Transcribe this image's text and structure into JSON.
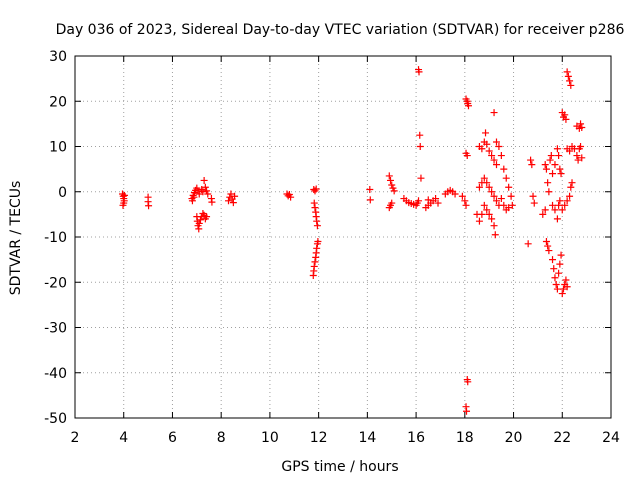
{
  "chart_data": {
    "type": "scatter",
    "title": "Day 036 of 2023, Sidereal Day-to-day VTEC variation (SDTVAR) for receiver p286",
    "xlabel": "GPS time / hours",
    "ylabel": "SDTVAR / TECUs",
    "xlim": [
      2,
      24
    ],
    "ylim": [
      -50,
      30
    ],
    "xticks": [
      2,
      4,
      6,
      8,
      10,
      12,
      14,
      16,
      18,
      20,
      22,
      24
    ],
    "yticks": [
      30,
      20,
      10,
      0,
      -10,
      -20,
      -30,
      -40,
      -50
    ],
    "grid": true,
    "marker": "+",
    "color": "#ff0000",
    "series": [
      {
        "name": "SDTVAR",
        "points": [
          [
            3.95,
            -0.5
          ],
          [
            3.98,
            -1.0
          ],
          [
            4.0,
            -1.5
          ],
          [
            4.02,
            -2.0
          ],
          [
            4.0,
            -2.5
          ],
          [
            3.97,
            -3.0
          ],
          [
            4.03,
            -0.8
          ],
          [
            5.0,
            -1.2
          ],
          [
            5.0,
            -2.2
          ],
          [
            5.02,
            -3.1
          ],
          [
            6.8,
            -1.5
          ],
          [
            6.85,
            -0.8
          ],
          [
            6.9,
            -0.2
          ],
          [
            6.95,
            0.3
          ],
          [
            7.0,
            0.8
          ],
          [
            7.05,
            0.2
          ],
          [
            7.1,
            -0.5
          ],
          [
            6.82,
            -2.0
          ],
          [
            6.88,
            -1.2
          ],
          [
            7.0,
            -5.5
          ],
          [
            7.02,
            -6.5
          ],
          [
            7.05,
            -7.5
          ],
          [
            7.08,
            -8.2
          ],
          [
            7.1,
            -7.0
          ],
          [
            7.15,
            -6.2
          ],
          [
            7.2,
            -5.5
          ],
          [
            7.25,
            -4.8
          ],
          [
            7.3,
            -5.2
          ],
          [
            7.35,
            -6.0
          ],
          [
            7.4,
            -5.5
          ],
          [
            7.2,
            0.5
          ],
          [
            7.25,
            0.0
          ],
          [
            7.3,
            2.5
          ],
          [
            7.35,
            1.0
          ],
          [
            7.4,
            0.2
          ],
          [
            7.45,
            -0.5
          ],
          [
            7.6,
            -1.5
          ],
          [
            7.62,
            -2.3
          ],
          [
            8.3,
            -2.0
          ],
          [
            8.35,
            -1.2
          ],
          [
            8.4,
            -0.5
          ],
          [
            8.45,
            -1.6
          ],
          [
            8.5,
            -2.4
          ],
          [
            8.55,
            -1.0
          ],
          [
            10.7,
            -0.5
          ],
          [
            10.75,
            -0.9
          ],
          [
            10.8,
            -0.6
          ],
          [
            10.85,
            -1.2
          ],
          [
            11.8,
            0.5
          ],
          [
            11.85,
            0.2
          ],
          [
            11.9,
            0.6
          ],
          [
            11.82,
            -2.5
          ],
          [
            11.85,
            -3.5
          ],
          [
            11.88,
            -4.5
          ],
          [
            11.9,
            -5.5
          ],
          [
            11.92,
            -6.5
          ],
          [
            11.95,
            -7.5
          ],
          [
            11.78,
            -18.5
          ],
          [
            11.8,
            -17.5
          ],
          [
            11.82,
            -16.5
          ],
          [
            11.85,
            -15.5
          ],
          [
            11.88,
            -14.5
          ],
          [
            11.9,
            -13.5
          ],
          [
            11.92,
            -12.5
          ],
          [
            11.95,
            -11.5
          ],
          [
            11.97,
            -11.0
          ],
          [
            14.1,
            0.5
          ],
          [
            14.12,
            -1.8
          ],
          [
            14.9,
            -3.5
          ],
          [
            14.95,
            -3.0
          ],
          [
            15.0,
            -2.5
          ],
          [
            14.9,
            3.5
          ],
          [
            14.95,
            2.5
          ],
          [
            15.0,
            1.5
          ],
          [
            15.05,
            0.8
          ],
          [
            15.1,
            0.2
          ],
          [
            15.5,
            -1.5
          ],
          [
            15.6,
            -2.0
          ],
          [
            15.7,
            -2.4
          ],
          [
            15.8,
            -2.6
          ],
          [
            15.9,
            -2.8
          ],
          [
            16.0,
            -3.0
          ],
          [
            16.05,
            -2.5
          ],
          [
            16.1,
            -2.0
          ],
          [
            16.1,
            27.0
          ],
          [
            16.12,
            26.5
          ],
          [
            16.15,
            12.5
          ],
          [
            16.17,
            10.0
          ],
          [
            16.2,
            3.0
          ],
          [
            16.4,
            -3.5
          ],
          [
            16.5,
            -3.0
          ],
          [
            16.6,
            -2.5
          ],
          [
            16.7,
            -2.0
          ],
          [
            16.8,
            -1.5
          ],
          [
            16.9,
            -2.5
          ],
          [
            16.5,
            -1.8
          ],
          [
            17.2,
            -0.5
          ],
          [
            17.3,
            0.0
          ],
          [
            17.4,
            0.3
          ],
          [
            17.5,
            0.0
          ],
          [
            17.6,
            -0.5
          ],
          [
            17.9,
            -1.0
          ],
          [
            18.0,
            -2.0
          ],
          [
            18.05,
            -3.0
          ],
          [
            18.05,
            8.5
          ],
          [
            18.1,
            8.0
          ],
          [
            18.05,
            20.5
          ],
          [
            18.1,
            20.0
          ],
          [
            18.12,
            19.5
          ],
          [
            18.15,
            19.0
          ],
          [
            18.1,
            -41.5
          ],
          [
            18.12,
            -42.0
          ],
          [
            18.05,
            -47.5
          ],
          [
            18.07,
            -48.5
          ],
          [
            18.5,
            -5.0
          ],
          [
            18.6,
            -6.5
          ],
          [
            18.7,
            -5.0
          ],
          [
            18.8,
            -3.0
          ],
          [
            18.9,
            -4.0
          ],
          [
            19.0,
            -5.0
          ],
          [
            19.1,
            -6.0
          ],
          [
            19.2,
            -7.5
          ],
          [
            19.25,
            -9.5
          ],
          [
            18.6,
            10.0
          ],
          [
            18.7,
            9.5
          ],
          [
            18.8,
            11.0
          ],
          [
            18.85,
            13.0
          ],
          [
            18.9,
            10.5
          ],
          [
            19.0,
            9.0
          ],
          [
            19.1,
            8.0
          ],
          [
            19.2,
            7.0
          ],
          [
            19.3,
            6.0
          ],
          [
            18.6,
            1.0
          ],
          [
            18.7,
            2.0
          ],
          [
            18.8,
            3.0
          ],
          [
            18.9,
            2.0
          ],
          [
            19.0,
            1.0
          ],
          [
            19.1,
            0.0
          ],
          [
            19.2,
            -1.0
          ],
          [
            19.3,
            -2.0
          ],
          [
            19.4,
            -3.0
          ],
          [
            19.2,
            17.5
          ],
          [
            19.3,
            11.0
          ],
          [
            19.4,
            10.0
          ],
          [
            19.5,
            8.0
          ],
          [
            19.6,
            5.0
          ],
          [
            19.7,
            3.0
          ],
          [
            19.8,
            1.0
          ],
          [
            19.9,
            -1.0
          ],
          [
            19.95,
            -3.0
          ],
          [
            19.5,
            -1.5
          ],
          [
            19.6,
            -3.0
          ],
          [
            19.7,
            -4.0
          ],
          [
            19.8,
            -3.5
          ],
          [
            20.6,
            -11.5
          ],
          [
            20.7,
            7.0
          ],
          [
            20.75,
            6.0
          ],
          [
            20.8,
            -1.0
          ],
          [
            20.85,
            -2.5
          ],
          [
            21.2,
            -5.0
          ],
          [
            21.3,
            -4.0
          ],
          [
            21.35,
            -11.0
          ],
          [
            21.4,
            -12.0
          ],
          [
            21.45,
            -13.0
          ],
          [
            21.3,
            6.0
          ],
          [
            21.35,
            5.0
          ],
          [
            21.4,
            2.0
          ],
          [
            21.45,
            0.0
          ],
          [
            21.5,
            7.0
          ],
          [
            21.55,
            8.0
          ],
          [
            21.6,
            -15.0
          ],
          [
            21.65,
            -17.0
          ],
          [
            21.7,
            -19.0
          ],
          [
            21.75,
            -20.5
          ],
          [
            21.8,
            -21.5
          ],
          [
            21.85,
            -18.0
          ],
          [
            21.9,
            -16.0
          ],
          [
            21.95,
            -14.0
          ],
          [
            21.6,
            -3.0
          ],
          [
            21.7,
            -4.0
          ],
          [
            21.8,
            -6.0
          ],
          [
            21.85,
            -3.0
          ],
          [
            21.9,
            -2.0
          ],
          [
            21.6,
            4.0
          ],
          [
            21.7,
            6.0
          ],
          [
            21.8,
            9.5
          ],
          [
            21.85,
            8.0
          ],
          [
            21.9,
            5.0
          ],
          [
            21.95,
            4.0
          ],
          [
            22.0,
            -22.5
          ],
          [
            22.05,
            -21.5
          ],
          [
            22.1,
            -20.5
          ],
          [
            22.15,
            -19.5
          ],
          [
            22.2,
            -21.0
          ],
          [
            22.0,
            -4.0
          ],
          [
            22.1,
            -3.0
          ],
          [
            22.2,
            -2.0
          ],
          [
            22.3,
            -1.0
          ],
          [
            22.35,
            1.0
          ],
          [
            22.4,
            2.0
          ],
          [
            22.0,
            17.5
          ],
          [
            22.05,
            16.5
          ],
          [
            22.1,
            17.0
          ],
          [
            22.15,
            16.0
          ],
          [
            22.2,
            9.5
          ],
          [
            22.3,
            9.0
          ],
          [
            22.4,
            10.0
          ],
          [
            22.5,
            9.5
          ],
          [
            22.2,
            26.5
          ],
          [
            22.25,
            25.5
          ],
          [
            22.3,
            24.5
          ],
          [
            22.35,
            23.5
          ],
          [
            22.6,
            14.5
          ],
          [
            22.7,
            14.0
          ],
          [
            22.75,
            15.0
          ],
          [
            22.8,
            14.2
          ],
          [
            22.6,
            8.0
          ],
          [
            22.65,
            7.0
          ],
          [
            22.7,
            9.5
          ],
          [
            22.75,
            10.0
          ],
          [
            22.8,
            7.5
          ]
        ]
      }
    ]
  }
}
